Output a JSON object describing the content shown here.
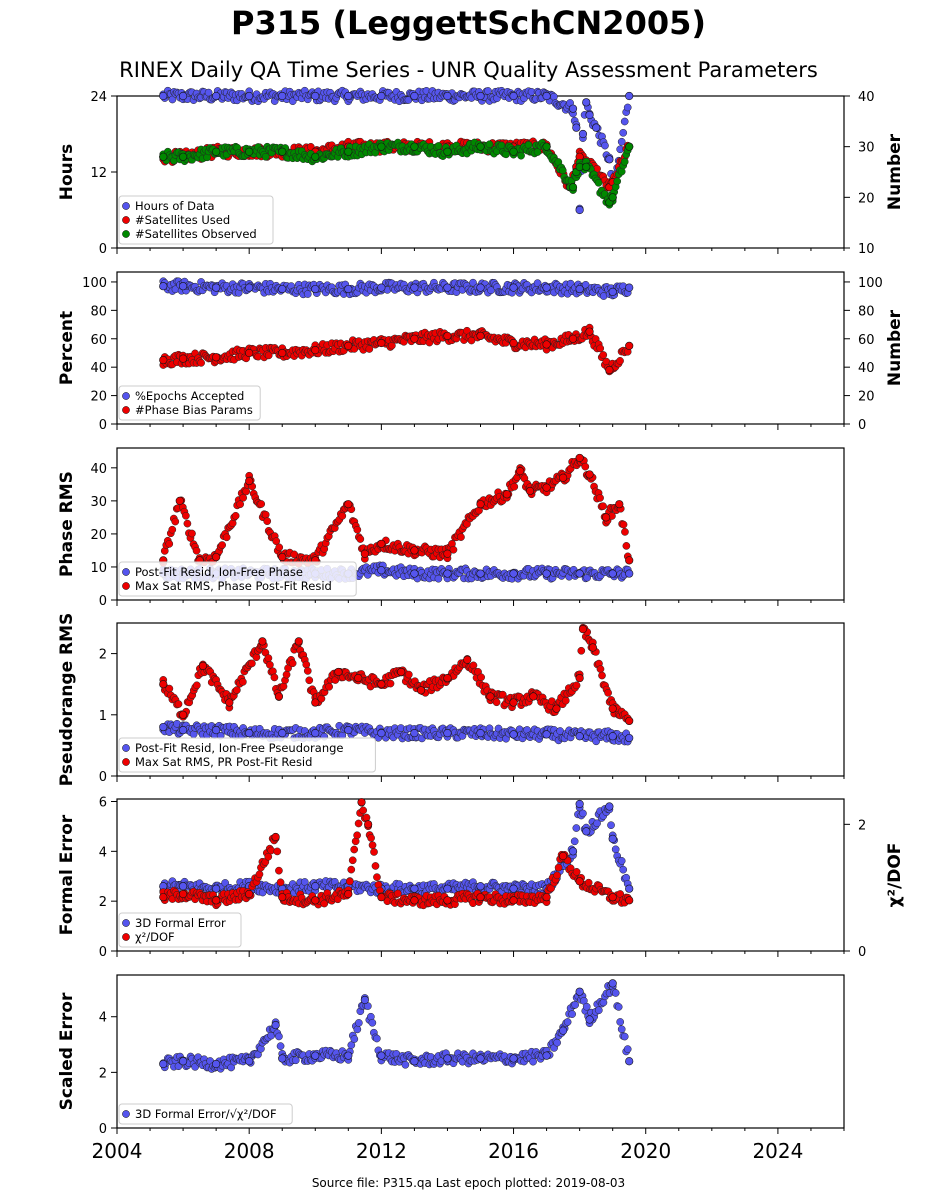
{
  "figure": {
    "title": "P315 (LeggettSchCN2005)",
    "subtitle": "RINEX Daily QA Time Series - UNR Quality Assessment Parameters",
    "footer": "Source file: P315.qa Last epoch plotted: 2019-08-03"
  },
  "colors": {
    "blue": "#5555ee",
    "red": "#ee0000",
    "green": "#008800"
  },
  "chart_data": [
    {
      "type": "scatter",
      "ylabel": "Hours",
      "ylabel_right": "Number",
      "ylim": [
        0,
        24
      ],
      "yticks": [
        "0",
        "12",
        "24"
      ],
      "ytick_values": [
        0,
        12,
        24
      ],
      "ylim_right": [
        10,
        40
      ],
      "yticks_right": [
        "10",
        "20",
        "30",
        "40"
      ],
      "ytick_values_right": [
        10,
        20,
        30,
        40
      ],
      "xlim": [
        2004,
        2026
      ],
      "legend": "lower-left",
      "series": [
        {
          "name": "Hours of Data",
          "color": "blue",
          "axis": "left",
          "x": [
            2005.4,
            2006,
            2007,
            2008,
            2009,
            2010,
            2011,
            2012,
            2013,
            2014,
            2015,
            2016,
            2017,
            2017.8,
            2017.9,
            2018.0,
            2018.1,
            2018.2,
            2018.3,
            2018.5,
            2018.9,
            2019.0,
            2019.5
          ],
          "y": [
            24,
            24,
            24,
            24,
            24,
            24,
            24,
            24,
            24,
            24,
            24,
            24,
            24,
            22,
            19,
            6,
            18,
            23,
            21,
            19,
            14,
            8,
            24
          ]
        },
        {
          "name": "#Satellites Used",
          "color": "red",
          "axis": "right",
          "x": [
            2005.4,
            2006,
            2007,
            2008,
            2009,
            2010,
            2011,
            2012,
            2013,
            2014,
            2015,
            2016,
            2017,
            2017.7,
            2017.9,
            2018.0,
            2018.2,
            2018.9,
            2019.0,
            2019.5
          ],
          "y": [
            28,
            28,
            29,
            29,
            29,
            29,
            30,
            30,
            30,
            30,
            30,
            30,
            30,
            22,
            26,
            28,
            27,
            22,
            23,
            30
          ]
        },
        {
          "name": "#Satellites Observed",
          "color": "green",
          "axis": "right",
          "x": [
            2005.4,
            2006,
            2007,
            2008,
            2009,
            2010,
            2011,
            2012,
            2013,
            2014,
            2015,
            2016,
            2017,
            2017.8,
            2017.9,
            2018.0,
            2018.2,
            2018.9,
            2019.0,
            2019.5
          ],
          "y": [
            28,
            28,
            29,
            29,
            29,
            28,
            29,
            30,
            30,
            29,
            30,
            29,
            30,
            22,
            25,
            26,
            26,
            19,
            20,
            30
          ]
        }
      ]
    },
    {
      "type": "scatter",
      "ylabel": "Percent",
      "ylabel_right": "Number",
      "ylim": [
        0,
        107
      ],
      "yticks": [
        "0",
        "20",
        "40",
        "60",
        "80",
        "100"
      ],
      "ytick_values": [
        0,
        20,
        40,
        60,
        80,
        100
      ],
      "ylim_right": [
        0,
        107
      ],
      "yticks_right": [
        "0",
        "20",
        "40",
        "60",
        "80",
        "100"
      ],
      "ytick_values_right": [
        0,
        20,
        40,
        60,
        80,
        100
      ],
      "xlim": [
        2004,
        2026
      ],
      "legend": "lower-left",
      "series": [
        {
          "name": "%Epochs Accepted",
          "color": "blue",
          "axis": "left",
          "x": [
            2005.4,
            2006,
            2007,
            2008,
            2009,
            2010,
            2011,
            2012,
            2013,
            2014,
            2015,
            2016,
            2017,
            2018,
            2019,
            2019.5
          ],
          "y": [
            97,
            97,
            96,
            96,
            95,
            95,
            95,
            96,
            96,
            96,
            96,
            96,
            96,
            95,
            93,
            96
          ]
        },
        {
          "name": "#Phase Bias Params",
          "color": "red",
          "axis": "right",
          "x": [
            2005.4,
            2006,
            2007,
            2008,
            2009,
            2010,
            2011,
            2012,
            2013,
            2014,
            2015,
            2016,
            2017,
            2017.8,
            2018.3,
            2018.9,
            2019.5
          ],
          "y": [
            45,
            46,
            47,
            50,
            50,
            52,
            55,
            57,
            60,
            62,
            62,
            57,
            56,
            60,
            65,
            38,
            55
          ]
        }
      ]
    },
    {
      "type": "scatter",
      "ylabel": "Phase RMS",
      "ylim": [
        0,
        46
      ],
      "yticks": [
        "0",
        "10",
        "20",
        "30",
        "40"
      ],
      "ytick_values": [
        0,
        10,
        20,
        30,
        40
      ],
      "xlim": [
        2004,
        2026
      ],
      "legend": "lower-left",
      "series": [
        {
          "name": "Post-Fit Resid, Ion-Free Phase",
          "color": "blue",
          "x": [
            2005.4,
            2006,
            2007,
            2008,
            2009,
            2010,
            2011,
            2012,
            2013,
            2014,
            2015,
            2016,
            2017,
            2018,
            2019,
            2019.5
          ],
          "y": [
            8,
            8,
            8,
            8,
            8,
            8,
            8,
            9,
            8,
            8,
            8,
            8,
            8,
            8,
            8,
            8
          ]
        },
        {
          "name": "Max Sat RMS, Phase Post-Fit Resid",
          "color": "red",
          "x": [
            2005.4,
            2005.9,
            2006.5,
            2007,
            2008,
            2009,
            2010,
            2011,
            2011.5,
            2012,
            2013,
            2014,
            2015,
            2015.8,
            2016.2,
            2016.5,
            2017,
            2017.5,
            2018,
            2018.3,
            2018.8,
            2019.2,
            2019.5
          ],
          "y": [
            12,
            30,
            12,
            13,
            36,
            13,
            12,
            29,
            14,
            17,
            15,
            14,
            29,
            32,
            39,
            33,
            34,
            37,
            43,
            38,
            25,
            29,
            12
          ]
        }
      ]
    },
    {
      "type": "scatter",
      "ylabel": "Pseudorange RMS",
      "ylim": [
        0,
        2.5
      ],
      "yticks": [
        "0",
        "1",
        "2"
      ],
      "ytick_values": [
        0,
        1,
        2
      ],
      "xlim": [
        2004,
        2026
      ],
      "legend": "lower-left",
      "series": [
        {
          "name": "Post-Fit Resid, Ion-Free Pseudorange",
          "color": "blue",
          "x": [
            2005.4,
            2006,
            2007,
            2008,
            2009,
            2010,
            2011,
            2012,
            2013,
            2014,
            2015,
            2016,
            2017,
            2018,
            2019,
            2019.5
          ],
          "y": [
            0.8,
            0.75,
            0.75,
            0.7,
            0.7,
            0.7,
            0.75,
            0.7,
            0.7,
            0.7,
            0.7,
            0.68,
            0.68,
            0.65,
            0.65,
            0.62
          ]
        },
        {
          "name": "Max Sat RMS, PR Post-Fit Resid",
          "color": "red",
          "x": [
            2005.4,
            2006,
            2006.6,
            2007.4,
            2008.4,
            2008.9,
            2009.5,
            2010,
            2010.7,
            2011.3,
            2012,
            2012.6,
            2013.2,
            2014,
            2014.6,
            2015.3,
            2016,
            2016.6,
            2017.3,
            2018,
            2018.1,
            2018.4,
            2019,
            2019.5
          ],
          "y": [
            1.5,
            1.0,
            1.8,
            1.2,
            2.2,
            1.3,
            2.2,
            1.2,
            1.7,
            1.6,
            1.5,
            1.7,
            1.4,
            1.6,
            1.9,
            1.3,
            1.2,
            1.3,
            1.1,
            1.6,
            2.4,
            2.1,
            1.1,
            0.9
          ]
        }
      ]
    },
    {
      "type": "scatter",
      "ylabel": "Formal Error",
      "ylabel_right": "χ²/DOF",
      "ylim": [
        0,
        6.1
      ],
      "yticks": [
        "0",
        "2",
        "4",
        "6"
      ],
      "ytick_values": [
        0,
        2,
        4,
        6
      ],
      "ylim_right": [
        0,
        2.4
      ],
      "yticks_right": [
        "0",
        "2"
      ],
      "ytick_values_right": [
        0,
        2
      ],
      "xlim": [
        2004,
        2026
      ],
      "legend": "lower-left",
      "series": [
        {
          "name": "3D Formal Error",
          "color": "blue",
          "axis": "left",
          "x": [
            2005.4,
            2006,
            2007,
            2008,
            2009,
            2010,
            2011,
            2012,
            2013,
            2014,
            2015,
            2016,
            2017,
            2017.8,
            2018.0,
            2018.2,
            2018.9,
            2019.0,
            2019.5
          ],
          "y": [
            2.6,
            2.6,
            2.5,
            2.6,
            2.5,
            2.6,
            2.6,
            2.5,
            2.5,
            2.5,
            2.6,
            2.5,
            2.5,
            4.0,
            5.9,
            4.8,
            5.8,
            4.5,
            2.5
          ]
        },
        {
          "name": "χ²/DOF",
          "color": "red",
          "axis": "right",
          "x": [
            2005.4,
            2006,
            2007,
            2008,
            2008.8,
            2009,
            2010,
            2011,
            2011.4,
            2011.6,
            2012,
            2013,
            2014,
            2015,
            2016,
            2017,
            2017.5,
            2018,
            2019,
            2019.5
          ],
          "y": [
            0.85,
            0.9,
            0.8,
            0.9,
            1.8,
            0.85,
            0.8,
            0.9,
            2.35,
            2.0,
            0.85,
            0.8,
            0.8,
            0.85,
            0.8,
            0.85,
            1.5,
            1.1,
            0.85,
            0.8
          ]
        }
      ]
    },
    {
      "type": "scatter",
      "ylabel": "Scaled Error",
      "ylim": [
        0,
        5.5
      ],
      "yticks": [
        "0",
        "2",
        "4"
      ],
      "ytick_values": [
        0,
        2,
        4
      ],
      "xlim": [
        2004,
        2026
      ],
      "xticks": [
        "2004",
        "2008",
        "2012",
        "2016",
        "2020",
        "2024"
      ],
      "xtick_values": [
        2004,
        2008,
        2012,
        2016,
        2020,
        2024
      ],
      "legend": "lower-left",
      "series": [
        {
          "name": "3D Formal Error/√χ²/DOF",
          "color": "blue",
          "x": [
            2005.4,
            2006,
            2007,
            2008,
            2008.8,
            2009,
            2010,
            2011,
            2011.5,
            2012,
            2013,
            2014,
            2015,
            2016,
            2017,
            2017.5,
            2018,
            2018.3,
            2019,
            2019.5
          ],
          "y": [
            2.3,
            2.4,
            2.3,
            2.4,
            3.7,
            2.5,
            2.6,
            2.6,
            4.6,
            2.6,
            2.4,
            2.5,
            2.5,
            2.5,
            2.6,
            3.5,
            4.9,
            3.9,
            5.2,
            2.4
          ]
        }
      ]
    }
  ]
}
